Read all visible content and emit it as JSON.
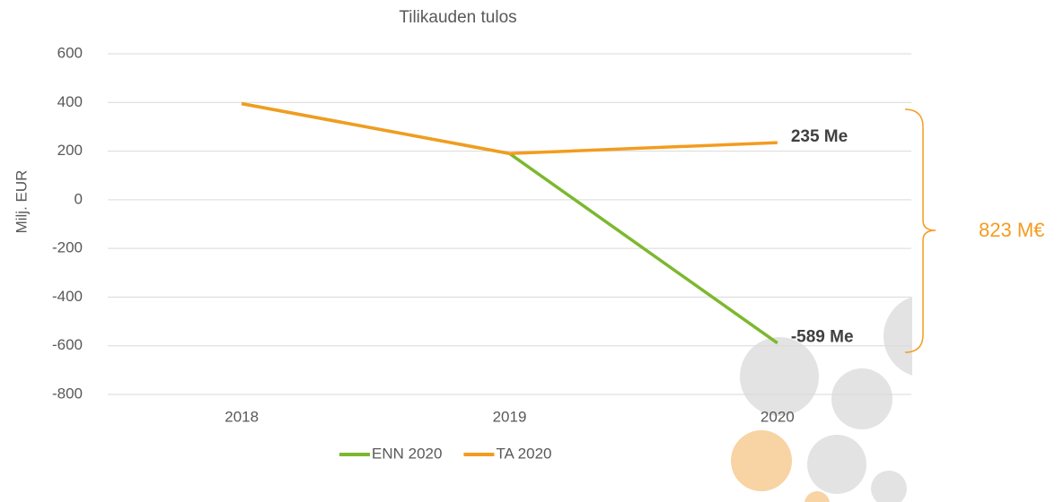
{
  "chart_data": {
    "type": "line",
    "title": "Tilikauden tulos",
    "y_label": "Milj. EUR",
    "categories": [
      "2018",
      "2019",
      "2020"
    ],
    "series": [
      {
        "name": "ENN 2020",
        "color": "#7cb82f",
        "values": [
          395,
          190,
          -589
        ],
        "value_labels": [
          null,
          null,
          "-589 Me"
        ]
      },
      {
        "name": "TA 2020",
        "color": "#f39c1f",
        "values": [
          395,
          190,
          235
        ],
        "value_labels": [
          null,
          null,
          "235 Me"
        ]
      }
    ],
    "ylim": [
      -800,
      600
    ],
    "yticks": [
      -800,
      -600,
      -400,
      -200,
      0,
      200,
      400,
      600
    ],
    "grid": true,
    "annotation": "823 M€",
    "annotation_color": "#f39c1f"
  }
}
